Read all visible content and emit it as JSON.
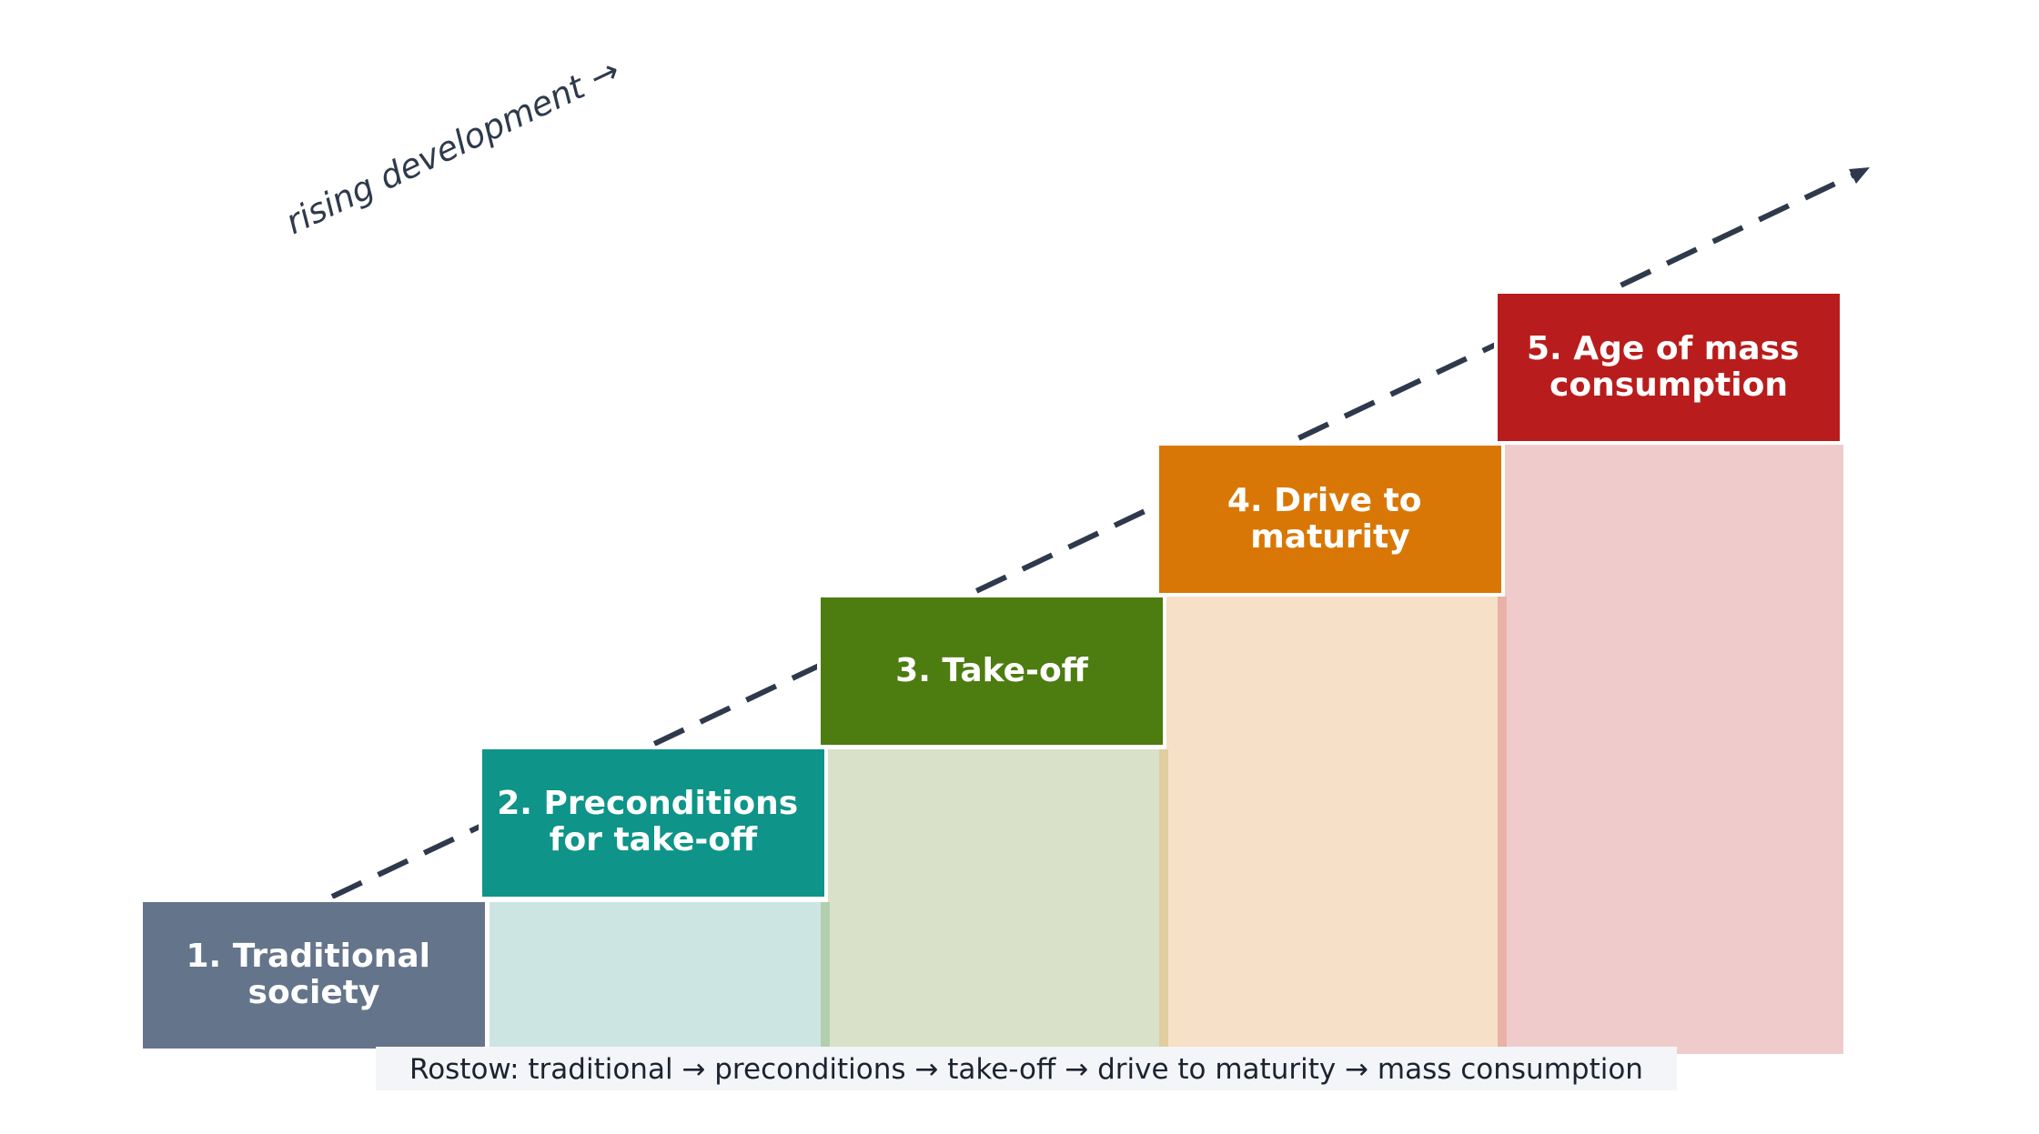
{
  "trend_label": "rising development →",
  "stages": [
    {
      "lines": [
        "1. Traditional",
        "society"
      ],
      "color": "#64748b",
      "tint": "#64748b"
    },
    {
      "lines": [
        "2. Preconditions",
        "for take-off"
      ],
      "color": "#0e9488",
      "tint": "#cde5e2"
    },
    {
      "lines": [
        "3. Take-off"
      ],
      "color": "#4d7c10",
      "tint": "#d9e2c9"
    },
    {
      "lines": [
        "4. Drive to",
        "maturity"
      ],
      "color": "#d97706",
      "tint": "#f6e0c7"
    },
    {
      "lines": [
        "5. Age of mass",
        "consumption"
      ],
      "color": "#b91c1c",
      "tint": "#efcccb"
    }
  ],
  "caption": "Rostow: traditional → preconditions → take-off → drive to maturity → mass consumption",
  "colors": {
    "arrow": "#2e3a4c",
    "caption_bg": "#f3f5f8",
    "caption_text": "#1c2330"
  }
}
